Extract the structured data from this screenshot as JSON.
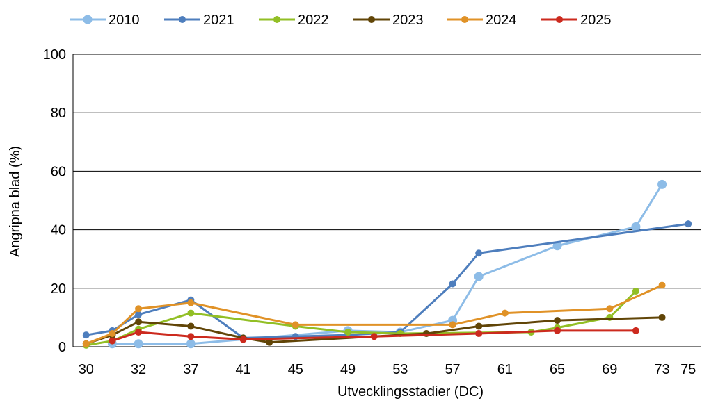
{
  "chart_data": {
    "type": "line",
    "xlabel": "Utvecklingsstadier (DC)",
    "ylabel": "Angripna blad (%)",
    "ylim": [
      0,
      100
    ],
    "y_ticks": [
      "0",
      "20",
      "40",
      "60",
      "80",
      "100"
    ],
    "x_ticks": [
      "30",
      "32",
      "37",
      "41",
      "45",
      "49",
      "53",
      "57",
      "61",
      "65",
      "69",
      "73",
      "75"
    ],
    "x_tick_positions": [
      30,
      34,
      38,
      42,
      46,
      50,
      54,
      58,
      62,
      66,
      70,
      74,
      76
    ],
    "xlim": [
      29,
      77
    ],
    "grid": true,
    "legend_position": "top",
    "series": [
      {
        "name": "2010",
        "color": "#8dbce7",
        "marker": "large",
        "points": [
          [
            32,
            1
          ],
          [
            34,
            1
          ],
          [
            38,
            1
          ],
          [
            50,
            5.5
          ],
          [
            54,
            5
          ],
          [
            58,
            9
          ],
          [
            60,
            24
          ],
          [
            66,
            34.5
          ],
          [
            72,
            41
          ],
          [
            74,
            55.5
          ]
        ]
      },
      {
        "name": "2021",
        "color": "#4e7ebd",
        "marker": "small",
        "points": [
          [
            30,
            4
          ],
          [
            32,
            5.5
          ],
          [
            34,
            11
          ],
          [
            38,
            16
          ],
          [
            42,
            3
          ],
          [
            46,
            3.5
          ],
          [
            50,
            4
          ],
          [
            54,
            5
          ],
          [
            58,
            21.5
          ],
          [
            60,
            32
          ],
          [
            76,
            42
          ]
        ]
      },
      {
        "name": "2022",
        "color": "#92bf25",
        "marker": "small",
        "points": [
          [
            30,
            0.5
          ],
          [
            32,
            2
          ],
          [
            34,
            6
          ],
          [
            38,
            11.5
          ],
          [
            46,
            7
          ],
          [
            50,
            5
          ],
          [
            54,
            4.5
          ],
          [
            64,
            5
          ],
          [
            66,
            6.5
          ],
          [
            70,
            10
          ],
          [
            72,
            19
          ]
        ]
      },
      {
        "name": "2023",
        "color": "#614507",
        "marker": "small",
        "points": [
          [
            30,
            1
          ],
          [
            32,
            4
          ],
          [
            34,
            8.5
          ],
          [
            38,
            7
          ],
          [
            42,
            3
          ],
          [
            44,
            1.5
          ],
          [
            56,
            4.5
          ],
          [
            60,
            7
          ],
          [
            66,
            9
          ],
          [
            74,
            10
          ]
        ]
      },
      {
        "name": "2024",
        "color": "#e09227",
        "marker": "small",
        "points": [
          [
            30,
            1
          ],
          [
            32,
            4.5
          ],
          [
            34,
            13
          ],
          [
            38,
            15
          ],
          [
            46,
            7.5
          ],
          [
            58,
            7.5
          ],
          [
            62,
            11.5
          ],
          [
            70,
            13
          ],
          [
            74,
            21
          ]
        ]
      },
      {
        "name": "2025",
        "color": "#cc2a1e",
        "marker": "small",
        "points": [
          [
            32,
            2
          ],
          [
            34,
            5
          ],
          [
            38,
            3.5
          ],
          [
            42,
            2.5
          ],
          [
            52,
            3.5
          ],
          [
            60,
            4.5
          ],
          [
            66,
            5.5
          ],
          [
            72,
            5.5
          ]
        ]
      }
    ]
  }
}
